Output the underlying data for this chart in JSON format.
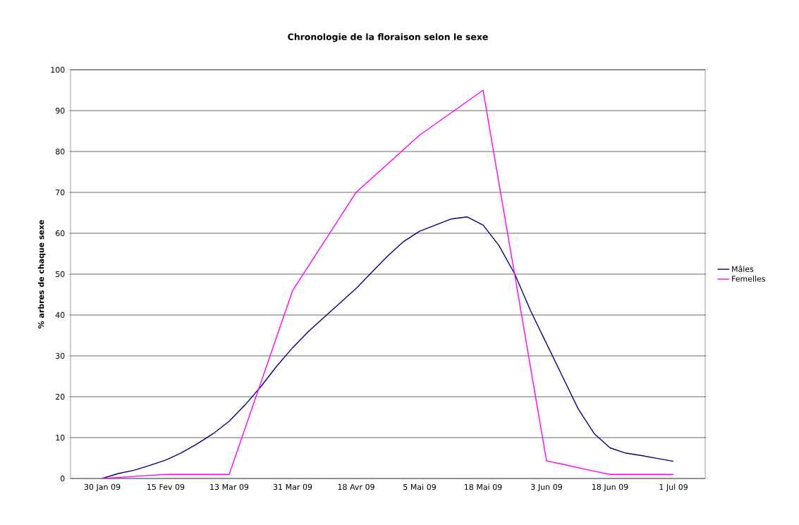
{
  "chart_data": {
    "type": "line",
    "title": "Chronologie de la floraison selon le sexe",
    "ylabel": "% arbres de chaque sexe",
    "categories": [
      "30 Jan 09",
      null,
      null,
      null,
      "15 Fev 09",
      null,
      null,
      null,
      "13 Mar 09",
      null,
      null,
      null,
      "31 Mar 09",
      null,
      null,
      null,
      "18 Avr 09",
      null,
      null,
      null,
      "5 Mai 09",
      null,
      null,
      null,
      "18 Mai 09",
      null,
      null,
      null,
      "3 Jun 09",
      null,
      null,
      null,
      "18 Jun 09",
      null,
      null,
      null,
      "1 Jul 09"
    ],
    "ylim": [
      0,
      100
    ],
    "yticks": [
      0,
      10,
      20,
      30,
      40,
      50,
      60,
      70,
      80,
      90,
      100
    ],
    "grid": "y",
    "legend": "right",
    "marker": "none",
    "line_style": "solid",
    "series": [
      {
        "name": "Mâles",
        "color": "#000080",
        "values": [
          0,
          1.2,
          2,
          3.2,
          4.5,
          6.3,
          8.5,
          11,
          14,
          18,
          22.5,
          27.5,
          32,
          36,
          39.5,
          43,
          46.5,
          50.5,
          54.5,
          58,
          60.5,
          62,
          63.5,
          64,
          62,
          57,
          50,
          41,
          33,
          25,
          17,
          11,
          7.5,
          6.2,
          5.6,
          4.9,
          4.2
        ]
      },
      {
        "name": "Femelles",
        "color": "#ff00ff",
        "values": [
          0,
          0.25,
          0.5,
          0.75,
          1,
          1,
          1,
          1,
          1,
          12.25,
          23.5,
          34.75,
          46,
          52,
          58,
          64,
          70,
          73.5,
          77,
          80.5,
          84,
          86.75,
          89.5,
          92.25,
          95,
          72.3,
          49.7,
          27,
          4.3,
          3.5,
          2.65,
          1.8,
          1,
          1,
          1,
          1,
          1
        ]
      }
    ]
  }
}
